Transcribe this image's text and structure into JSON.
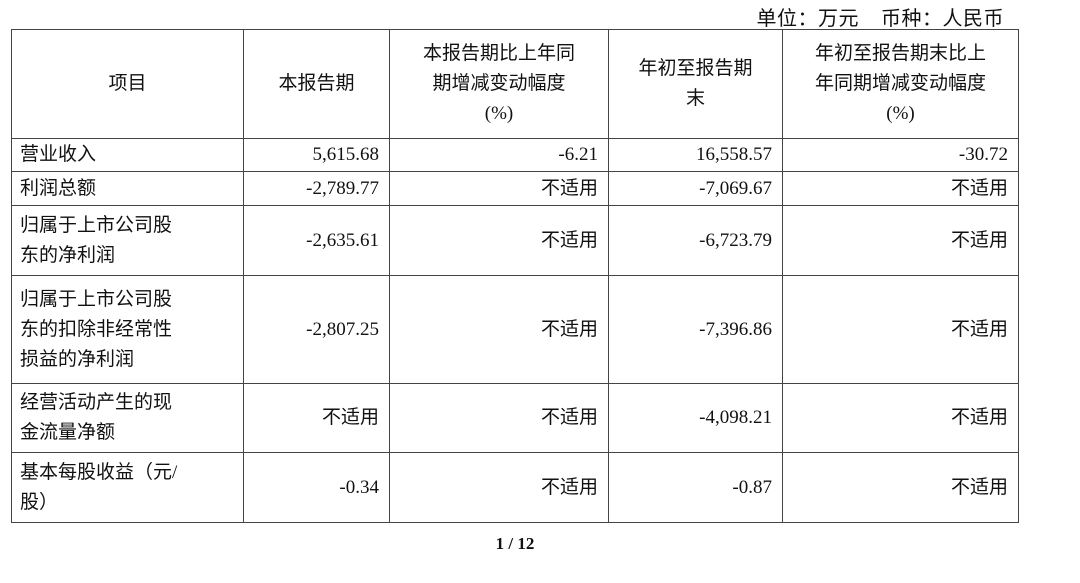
{
  "header": {
    "unit": "单位：万元",
    "currency": "币种：人民币"
  },
  "table": {
    "columns": [
      "项目",
      "本报告期",
      "本报告期比上年同期增减变动幅度(%)",
      "年初至报告期末",
      "年初至报告期末比上年同期增减变动幅度(%)"
    ],
    "column_lines": [
      [
        "项目"
      ],
      [
        "本报告期"
      ],
      [
        "本报告期比上年同",
        "期增减变动幅度",
        "(%)"
      ],
      [
        "年初至报告期",
        "末"
      ],
      [
        "年初至报告期末比上",
        "年同期增减变动幅度",
        "(%)"
      ]
    ],
    "rows": [
      {
        "item_lines": [
          "营业收入"
        ],
        "values": [
          "5,615.68",
          "-6.21",
          "16,558.57",
          "-30.72"
        ]
      },
      {
        "item_lines": [
          "利润总额"
        ],
        "values": [
          "-2,789.77",
          "不适用",
          "-7,069.67",
          "不适用"
        ]
      },
      {
        "item_lines": [
          "归属于上市公司股",
          "东的净利润"
        ],
        "values": [
          "-2,635.61",
          "不适用",
          "-6,723.79",
          "不适用"
        ]
      },
      {
        "item_lines": [
          "归属于上市公司股",
          "东的扣除非经常性",
          "损益的净利润"
        ],
        "values": [
          "-2,807.25",
          "不适用",
          "-7,396.86",
          "不适用"
        ]
      },
      {
        "item_lines": [
          "经营活动产生的现",
          "金流量净额"
        ],
        "values": [
          "不适用",
          "不适用",
          "-4,098.21",
          "不适用"
        ]
      },
      {
        "item_lines": [
          "基本每股收益（元/",
          "股）"
        ],
        "values": [
          "-0.34",
          "不适用",
          "-0.87",
          "不适用"
        ]
      }
    ]
  },
  "footer": {
    "page": "1 / 12"
  }
}
